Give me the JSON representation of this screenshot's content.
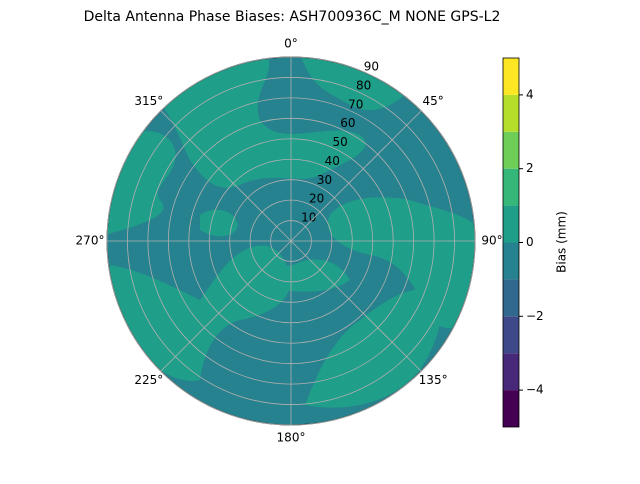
{
  "chart_data": {
    "type": "polar_contour",
    "title": "Delta Antenna Phase Biases: ASH700936C_M    NONE GPS-L2",
    "rlim": [
      0,
      90
    ],
    "rticks": [
      10,
      20,
      30,
      40,
      50,
      60,
      70,
      80,
      90
    ],
    "theta_ticks": [
      {
        "value": 0,
        "label": "0°"
      },
      {
        "value": 45,
        "label": "45°"
      },
      {
        "value": 90,
        "label": "90°"
      },
      {
        "value": 135,
        "label": "135°"
      },
      {
        "value": 180,
        "label": "180°"
      },
      {
        "value": 225,
        "label": "225°"
      },
      {
        "value": 270,
        "label": "270°"
      },
      {
        "value": 315,
        "label": "315°"
      }
    ],
    "grid": true,
    "colorbar": {
      "label": "Bias (mm)",
      "lim": [
        -5,
        5
      ],
      "levels": [
        -5,
        -4,
        -3,
        -2,
        -1,
        0,
        1,
        2,
        3,
        4,
        5
      ],
      "colors": [
        "#440154",
        "#482878",
        "#3e4989",
        "#31688e",
        "#26828e",
        "#1f9e89",
        "#35b779",
        "#6ece58",
        "#b5de2b",
        "#fde725"
      ],
      "ticks": [
        {
          "value": -4,
          "label": "−4"
        },
        {
          "value": -2,
          "label": "−2"
        },
        0,
        2,
        4
      ]
    }
  }
}
